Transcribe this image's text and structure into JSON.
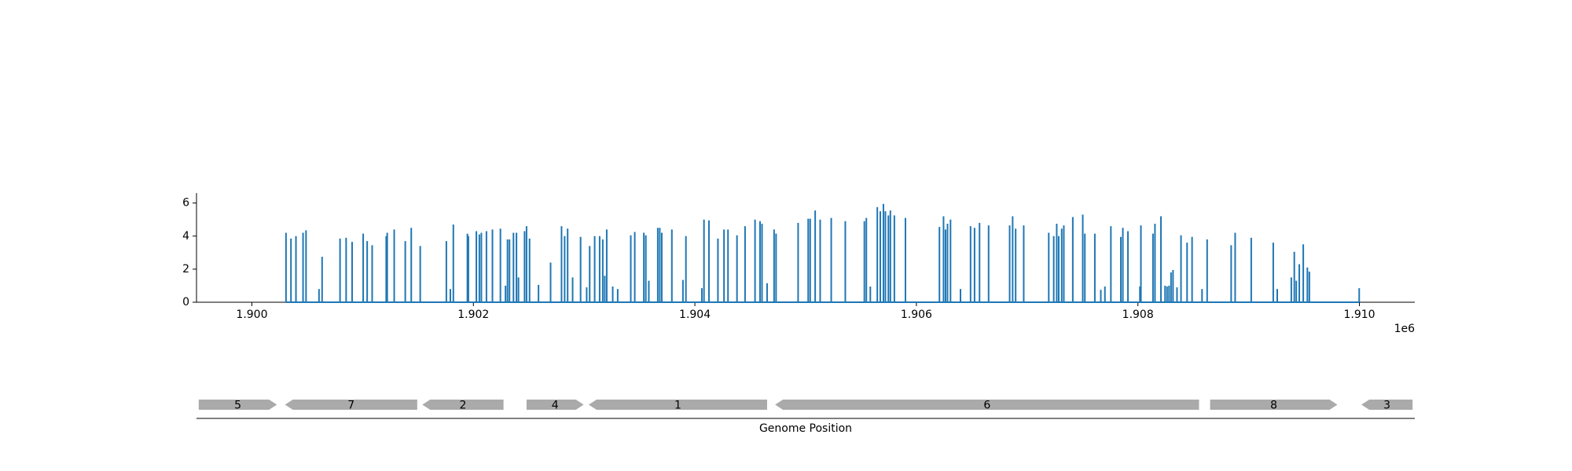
{
  "chart_data": {
    "type": "spike",
    "color": "#1f77b4",
    "xlabel": "Genome Position",
    "x_offset_label": "1e6",
    "xlim": [
      1899500,
      1910500
    ],
    "ylim": [
      0,
      6.6
    ],
    "xticks": [
      {
        "value": 1900000,
        "label": "1.900"
      },
      {
        "value": 1902000,
        "label": "1.902"
      },
      {
        "value": 1904000,
        "label": "1.904"
      },
      {
        "value": 1906000,
        "label": "1.906"
      },
      {
        "value": 1908000,
        "label": "1.908"
      },
      {
        "value": 1910000,
        "label": "1.910"
      }
    ],
    "yticks": [
      0,
      2,
      4,
      6
    ],
    "x": [
      1900308,
      1900353,
      1900398,
      1900462,
      1900489,
      1900606,
      1900634,
      1900796,
      1900851,
      1900905,
      1901005,
      1901041,
      1901086,
      1901213,
      1901222,
      1901285,
      1901385,
      1901439,
      1901520,
      1901756,
      1901792,
      1901819,
      1901946,
      1901955,
      1902027,
      1902054,
      1902072,
      1902118,
      1902172,
      1902244,
      1902290,
      1902308,
      1902326,
      1902362,
      1902389,
      1902407,
      1902462,
      1902480,
      1902507,
      1902588,
      1902697,
      1902796,
      1902824,
      1902851,
      1902896,
      1902968,
      1903023,
      1903050,
      1903095,
      1903140,
      1903168,
      1903186,
      1903204,
      1903258,
      1903303,
      1903421,
      1903457,
      1903539,
      1903557,
      1903584,
      1903665,
      1903683,
      1903701,
      1903792,
      1903892,
      1903919,
      1904063,
      1904082,
      1904127,
      1904208,
      1904263,
      1904299,
      1904380,
      1904453,
      1904543,
      1904588,
      1904606,
      1904652,
      1904715,
      1904733,
      1904932,
      1905023,
      1905041,
      1905086,
      1905131,
      1905231,
      1905358,
      1905530,
      1905548,
      1905584,
      1905647,
      1905674,
      1905702,
      1905720,
      1905747,
      1905765,
      1905801,
      1905901,
      1906208,
      1906245,
      1906263,
      1906281,
      1906308,
      1906398,
      1906489,
      1906525,
      1906570,
      1906652,
      1906842,
      1906869,
      1906896,
      1906969,
      1907195,
      1907240,
      1907267,
      1907285,
      1907312,
      1907331,
      1907412,
      1907502,
      1907521,
      1907611,
      1907665,
      1907702,
      1907756,
      1907846,
      1907864,
      1907910,
      1908018,
      1908027,
      1908136,
      1908154,
      1908208,
      1908245,
      1908263,
      1908281,
      1908299,
      1908317,
      1908353,
      1908389,
      1908444,
      1908489,
      1908579,
      1908625,
      1908842,
      1908878,
      1909023,
      1909222,
      1909258,
      1909385,
      1909412,
      1909430,
      1909457,
      1909493,
      1909530,
      1909548,
      1909998
    ],
    "values": [
      4.2,
      3.85,
      4.0,
      4.2,
      4.35,
      0.8,
      2.75,
      3.85,
      3.9,
      3.65,
      4.15,
      3.7,
      3.45,
      4.0,
      4.2,
      4.4,
      3.7,
      4.5,
      3.4,
      3.7,
      0.8,
      4.7,
      4.15,
      4.0,
      4.3,
      4.1,
      4.2,
      4.3,
      4.4,
      4.45,
      1.0,
      3.8,
      3.8,
      4.2,
      4.2,
      1.5,
      4.3,
      4.6,
      3.85,
      1.05,
      2.4,
      4.6,
      4.0,
      4.45,
      1.5,
      3.95,
      0.9,
      3.4,
      4.0,
      4.0,
      3.8,
      1.6,
      4.4,
      0.95,
      0.8,
      4.05,
      4.25,
      4.2,
      4.05,
      1.3,
      4.5,
      4.5,
      4.2,
      4.4,
      1.35,
      4.0,
      0.85,
      5.0,
      4.95,
      3.85,
      4.4,
      4.4,
      4.05,
      4.6,
      5.0,
      4.9,
      4.75,
      1.15,
      4.4,
      4.15,
      4.8,
      5.05,
      5.05,
      5.55,
      5.0,
      5.1,
      4.9,
      4.9,
      5.1,
      0.95,
      5.75,
      5.5,
      5.95,
      5.5,
      5.25,
      5.55,
      5.25,
      5.1,
      4.55,
      5.2,
      4.4,
      4.75,
      5.0,
      0.8,
      4.6,
      4.5,
      4.8,
      4.65,
      4.65,
      5.2,
      4.45,
      4.65,
      4.2,
      4.0,
      4.75,
      4.0,
      4.45,
      4.65,
      5.15,
      5.3,
      4.15,
      4.15,
      0.75,
      0.95,
      4.6,
      3.95,
      4.5,
      4.3,
      0.95,
      4.65,
      4.15,
      4.75,
      5.2,
      1.0,
      0.95,
      1.0,
      1.8,
      1.95,
      0.9,
      4.05,
      3.6,
      3.95,
      0.8,
      3.8,
      3.45,
      4.2,
      3.9,
      3.6,
      0.8,
      1.5,
      3.05,
      1.3,
      2.3,
      3.5,
      2.1,
      1.85,
      0.85
    ],
    "gene_color": "#aaaaaa",
    "genes": [
      {
        "label": "5",
        "start": 1899520,
        "end": 1900226,
        "strand": "+"
      },
      {
        "label": "7",
        "start": 1900299,
        "end": 1901493,
        "strand": "-"
      },
      {
        "label": "2",
        "start": 1901539,
        "end": 1902272,
        "strand": "-"
      },
      {
        "label": "4",
        "start": 1902480,
        "end": 1902996,
        "strand": "+"
      },
      {
        "label": "1",
        "start": 1903041,
        "end": 1904652,
        "strand": "-"
      },
      {
        "label": "6",
        "start": 1904724,
        "end": 1908552,
        "strand": "-"
      },
      {
        "label": "8",
        "start": 1908652,
        "end": 1909801,
        "strand": "+"
      },
      {
        "label": "3",
        "start": 1910018,
        "end": 1910480,
        "strand": "-"
      }
    ]
  }
}
